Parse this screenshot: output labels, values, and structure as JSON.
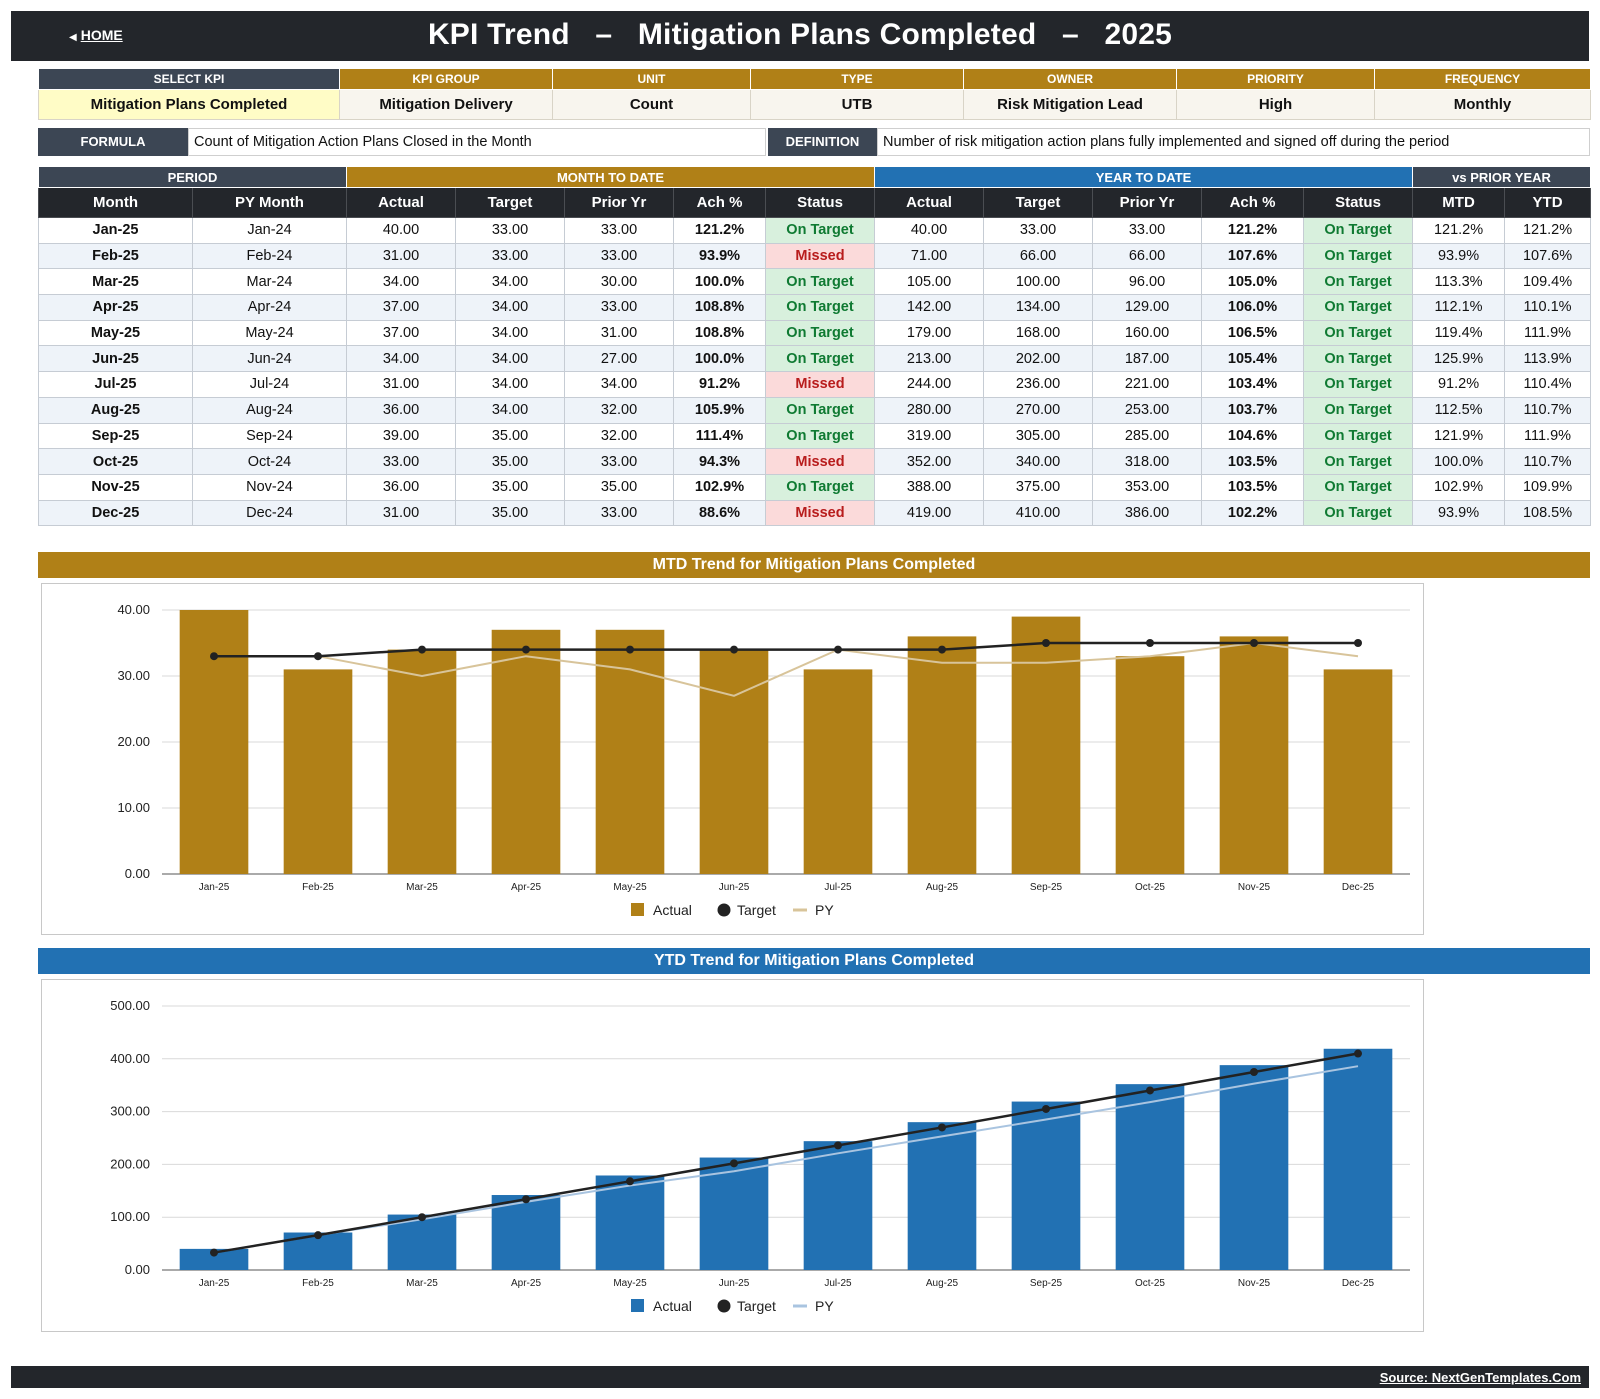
{
  "header": {
    "home_label": "HOME",
    "title": "KPI Trend   –   Mitigation Plans Completed   –   2025"
  },
  "kpi": {
    "labels": {
      "select": "SELECT KPI",
      "group": "KPI GROUP",
      "unit": "UNIT",
      "type": "TYPE",
      "owner": "OWNER",
      "priority": "PRIORITY",
      "frequency": "FREQUENCY"
    },
    "values": {
      "select": "Mitigation Plans Completed",
      "group": "Mitigation Delivery",
      "unit": "Count",
      "type": "UTB",
      "owner": "Risk Mitigation Lead",
      "priority": "High",
      "frequency": "Monthly"
    },
    "formula_label": "FORMULA",
    "formula": "Count of Mitigation Action Plans Closed in the Month",
    "definition_label": "DEFINITION",
    "definition": "Number of risk mitigation action plans fully implemented and signed off during the period"
  },
  "table": {
    "groups": {
      "period": "PERIOD",
      "mtd": "MONTH TO DATE",
      "ytd": "YEAR TO DATE",
      "vs": "vs PRIOR YEAR"
    },
    "columns": [
      "Month",
      "PY Month",
      "Actual",
      "Target",
      "Prior Yr",
      "Ach %",
      "Status",
      "Actual",
      "Target",
      "Prior Yr",
      "Ach %",
      "Status",
      "MTD",
      "YTD"
    ],
    "rows": [
      [
        "Jan-25",
        "Jan-24",
        "40.00",
        "33.00",
        "33.00",
        "121.2%",
        "On Target",
        "40.00",
        "33.00",
        "33.00",
        "121.2%",
        "On Target",
        "121.2%",
        "121.2%"
      ],
      [
        "Feb-25",
        "Feb-24",
        "31.00",
        "33.00",
        "33.00",
        "93.9%",
        "Missed",
        "71.00",
        "66.00",
        "66.00",
        "107.6%",
        "On Target",
        "93.9%",
        "107.6%"
      ],
      [
        "Mar-25",
        "Mar-24",
        "34.00",
        "34.00",
        "30.00",
        "100.0%",
        "On Target",
        "105.00",
        "100.00",
        "96.00",
        "105.0%",
        "On Target",
        "113.3%",
        "109.4%"
      ],
      [
        "Apr-25",
        "Apr-24",
        "37.00",
        "34.00",
        "33.00",
        "108.8%",
        "On Target",
        "142.00",
        "134.00",
        "129.00",
        "106.0%",
        "On Target",
        "112.1%",
        "110.1%"
      ],
      [
        "May-25",
        "May-24",
        "37.00",
        "34.00",
        "31.00",
        "108.8%",
        "On Target",
        "179.00",
        "168.00",
        "160.00",
        "106.5%",
        "On Target",
        "119.4%",
        "111.9%"
      ],
      [
        "Jun-25",
        "Jun-24",
        "34.00",
        "34.00",
        "27.00",
        "100.0%",
        "On Target",
        "213.00",
        "202.00",
        "187.00",
        "105.4%",
        "On Target",
        "125.9%",
        "113.9%"
      ],
      [
        "Jul-25",
        "Jul-24",
        "31.00",
        "34.00",
        "34.00",
        "91.2%",
        "Missed",
        "244.00",
        "236.00",
        "221.00",
        "103.4%",
        "On Target",
        "91.2%",
        "110.4%"
      ],
      [
        "Aug-25",
        "Aug-24",
        "36.00",
        "34.00",
        "32.00",
        "105.9%",
        "On Target",
        "280.00",
        "270.00",
        "253.00",
        "103.7%",
        "On Target",
        "112.5%",
        "110.7%"
      ],
      [
        "Sep-25",
        "Sep-24",
        "39.00",
        "35.00",
        "32.00",
        "111.4%",
        "On Target",
        "319.00",
        "305.00",
        "285.00",
        "104.6%",
        "On Target",
        "121.9%",
        "111.9%"
      ],
      [
        "Oct-25",
        "Oct-24",
        "33.00",
        "35.00",
        "33.00",
        "94.3%",
        "Missed",
        "352.00",
        "340.00",
        "318.00",
        "103.5%",
        "On Target",
        "100.0%",
        "110.7%"
      ],
      [
        "Nov-25",
        "Nov-24",
        "36.00",
        "35.00",
        "35.00",
        "102.9%",
        "On Target",
        "388.00",
        "375.00",
        "353.00",
        "103.5%",
        "On Target",
        "102.9%",
        "109.9%"
      ],
      [
        "Dec-25",
        "Dec-24",
        "31.00",
        "35.00",
        "33.00",
        "88.6%",
        "Missed",
        "419.00",
        "410.00",
        "386.00",
        "102.2%",
        "On Target",
        "93.9%",
        "108.5%"
      ]
    ]
  },
  "colors": {
    "gold": "#b08017",
    "blue": "#2271b3",
    "target_line": "#222222",
    "py_mtd": "#d8c49a",
    "py_ytd": "#a9c4e0"
  },
  "chart_data": [
    {
      "type": "bar",
      "title": "MTD Trend for Mitigation Plans Completed",
      "categories": [
        "Jan-25",
        "Feb-25",
        "Mar-25",
        "Apr-25",
        "May-25",
        "Jun-25",
        "Jul-25",
        "Aug-25",
        "Sep-25",
        "Oct-25",
        "Nov-25",
        "Dec-25"
      ],
      "series": [
        {
          "name": "Actual",
          "type": "bar",
          "values": [
            40,
            31,
            34,
            37,
            37,
            34,
            31,
            36,
            39,
            33,
            36,
            31
          ]
        },
        {
          "name": "Target",
          "type": "line",
          "values": [
            33,
            33,
            34,
            34,
            34,
            34,
            34,
            34,
            35,
            35,
            35,
            35
          ]
        },
        {
          "name": "PY",
          "type": "line",
          "values": [
            33,
            33,
            30,
            33,
            31,
            27,
            34,
            32,
            32,
            33,
            35,
            33
          ]
        }
      ],
      "yticks": [
        "0.00",
        "10.00",
        "20.00",
        "30.00",
        "40.00"
      ],
      "ylim": [
        0,
        40
      ],
      "grid": true,
      "legend": "bottom"
    },
    {
      "type": "bar",
      "title": "YTD Trend for Mitigation Plans Completed",
      "categories": [
        "Jan-25",
        "Feb-25",
        "Mar-25",
        "Apr-25",
        "May-25",
        "Jun-25",
        "Jul-25",
        "Aug-25",
        "Sep-25",
        "Oct-25",
        "Nov-25",
        "Dec-25"
      ],
      "series": [
        {
          "name": "Actual",
          "type": "bar",
          "values": [
            40,
            71,
            105,
            142,
            179,
            213,
            244,
            280,
            319,
            352,
            388,
            419
          ]
        },
        {
          "name": "Target",
          "type": "line",
          "values": [
            33,
            66,
            100,
            134,
            168,
            202,
            236,
            270,
            305,
            340,
            375,
            410
          ]
        },
        {
          "name": "PY",
          "type": "line",
          "values": [
            33,
            66,
            96,
            129,
            160,
            187,
            221,
            253,
            285,
            318,
            353,
            386
          ]
        }
      ],
      "yticks": [
        "0.00",
        "100.00",
        "200.00",
        "300.00",
        "400.00",
        "500.00"
      ],
      "ylim": [
        0,
        500
      ],
      "grid": true,
      "legend": "bottom"
    }
  ],
  "footer": {
    "source": "Source: NextGenTemplates.Com"
  }
}
